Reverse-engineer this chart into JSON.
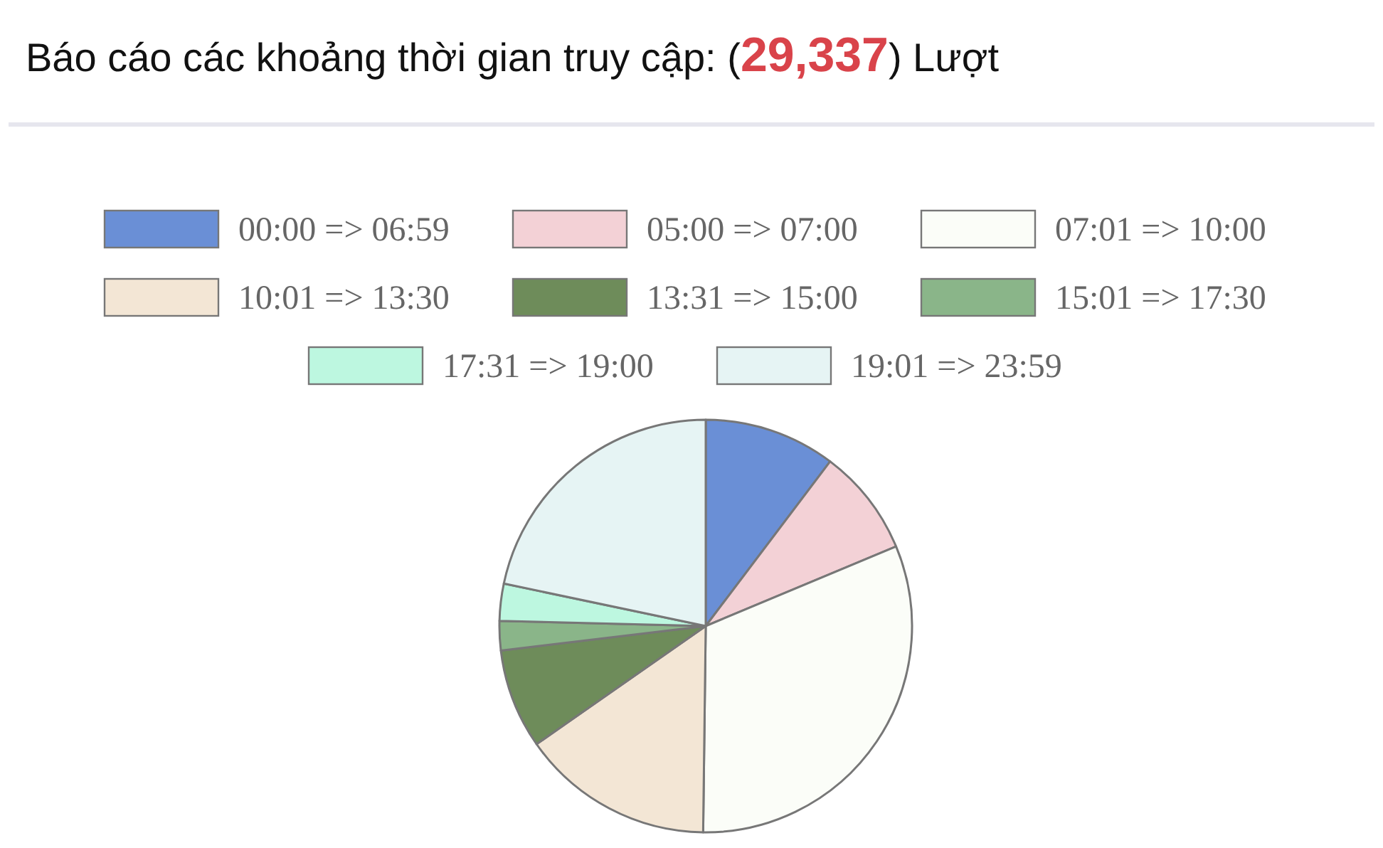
{
  "chart_data": {
    "type": "pie",
    "title": "Báo cáo các khoảng thời gian truy cập: (29,337) Lượt",
    "categories": [
      "00:00 => 06:59",
      "05:00 => 07:00",
      "07:01 => 10:00",
      "10:01 => 13:30",
      "13:31 => 15:00",
      "15:01 => 17:30",
      "17:31 => 19:00",
      "19:01 => 23:59"
    ],
    "values": [
      10.3,
      8.4,
      31.5,
      15.1,
      7.8,
      2.3,
      2.9,
      21.7
    ],
    "colors": [
      "#6a8fd6",
      "#f3d1d6",
      "#fbfdf8",
      "#f3e6d5",
      "#6e8c5a",
      "#8ab589",
      "#bdf7e0",
      "#e6f4f4"
    ],
    "legend": "top"
  }
}
